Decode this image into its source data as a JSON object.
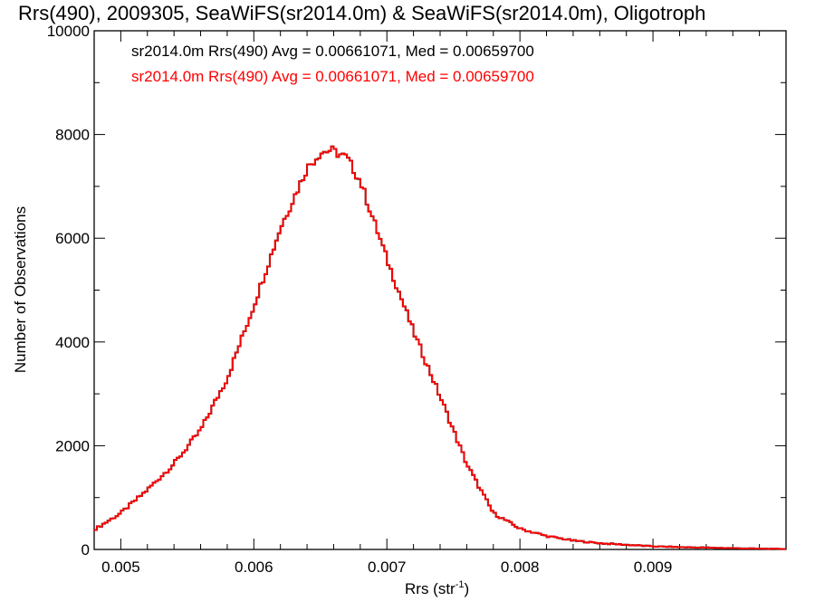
{
  "chart_data": {
    "type": "histogram",
    "title": "Rrs(490), 2009305, SeaWiFS(sr2014.0m) & SeaWiFS(sr2014.0m), Oligotroph",
    "xlabel_main": "Rrs (str",
    "xlabel_sup": "-1",
    "xlabel_end": ")",
    "ylabel": "Number of Observations",
    "xlim": [
      0.0048,
      0.01
    ],
    "ylim": [
      0,
      10000
    ],
    "x_ticks": [
      {
        "value": 0.005,
        "label": "0.005"
      },
      {
        "value": 0.006,
        "label": "0.006"
      },
      {
        "value": 0.007,
        "label": "0.007"
      },
      {
        "value": 0.008,
        "label": "0.008"
      },
      {
        "value": 0.009,
        "label": "0.009"
      }
    ],
    "y_ticks": [
      {
        "value": 0,
        "label": "0"
      },
      {
        "value": 2000,
        "label": "2000"
      },
      {
        "value": 4000,
        "label": "4000"
      },
      {
        "value": 6000,
        "label": "6000"
      },
      {
        "value": 8000,
        "label": "8000"
      },
      {
        "value": 10000,
        "label": "10000"
      }
    ],
    "bin_width": 2e-05,
    "bin_start": 0.0048,
    "legend": [
      {
        "text": "sr2014.0m Rrs(490) Avg = 0.00661071, Med = 0.00659700",
        "color": "#000000"
      },
      {
        "text": "sr2014.0m Rrs(490) Avg = 0.00661071, Med = 0.00659700",
        "color": "#ff0000"
      }
    ],
    "legend_position": "top-left",
    "series": [
      {
        "color": "#000000",
        "curve": "black-histogram"
      },
      {
        "color": "#ff0000",
        "curve": "red-histogram"
      }
    ],
    "anchor_points": [
      {
        "x": 0.0048,
        "y": 380
      },
      {
        "x": 0.005,
        "y": 700
      },
      {
        "x": 0.0052,
        "y": 1150
      },
      {
        "x": 0.0054,
        "y": 1650
      },
      {
        "x": 0.0056,
        "y": 2300
      },
      {
        "x": 0.0058,
        "y": 3300
      },
      {
        "x": 0.006,
        "y": 4700
      },
      {
        "x": 0.0062,
        "y": 6200
      },
      {
        "x": 0.0064,
        "y": 7350
      },
      {
        "x": 0.0065,
        "y": 7650
      },
      {
        "x": 0.00658,
        "y": 7700
      },
      {
        "x": 0.0067,
        "y": 7550
      },
      {
        "x": 0.0068,
        "y": 7100
      },
      {
        "x": 0.007,
        "y": 5600
      },
      {
        "x": 0.0072,
        "y": 4200
      },
      {
        "x": 0.0074,
        "y": 2950
      },
      {
        "x": 0.0076,
        "y": 1650
      },
      {
        "x": 0.0078,
        "y": 700
      },
      {
        "x": 0.008,
        "y": 400
      },
      {
        "x": 0.0082,
        "y": 260
      },
      {
        "x": 0.0084,
        "y": 170
      },
      {
        "x": 0.0086,
        "y": 120
      },
      {
        "x": 0.0088,
        "y": 90
      },
      {
        "x": 0.009,
        "y": 60
      },
      {
        "x": 0.0092,
        "y": 45
      },
      {
        "x": 0.0094,
        "y": 35
      },
      {
        "x": 0.0096,
        "y": 25
      },
      {
        "x": 0.0098,
        "y": 15
      },
      {
        "x": 0.01,
        "y": 10
      }
    ]
  }
}
